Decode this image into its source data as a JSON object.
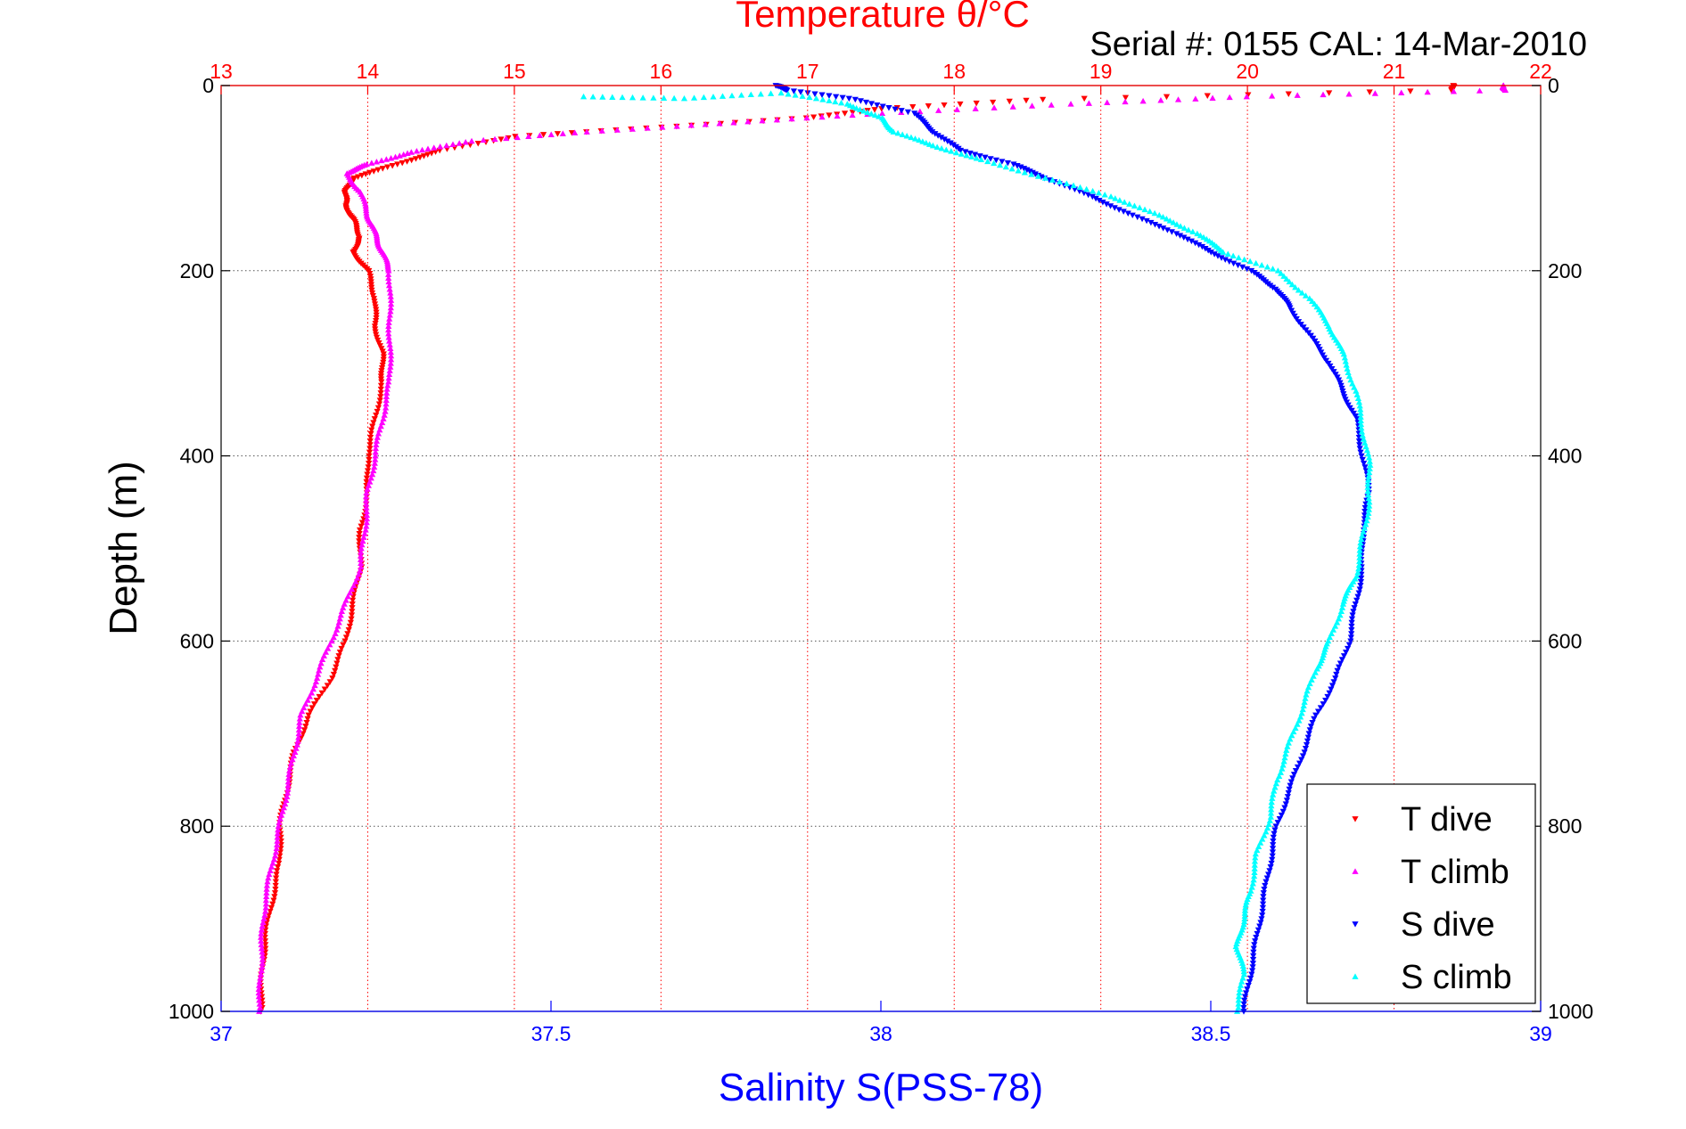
{
  "chart_data": {
    "type": "scatter",
    "title": "Temperature θ/°C",
    "subtitle": "Serial #: 0155  CAL: 14-Mar-2010",
    "ylabel": "Depth (m)",
    "xlabel_bottom": "Salinity S(PSS-78)",
    "xlabel_top": "Temperature θ/°C",
    "y_reversed": true,
    "ylim": [
      0,
      1000
    ],
    "ytick_labels": [
      "0",
      "200",
      "400",
      "600",
      "800",
      "1000"
    ],
    "ytick_values": [
      0,
      200,
      400,
      600,
      800,
      1000
    ],
    "bottom_axis": {
      "lim": [
        37,
        39
      ],
      "tick_values": [
        37,
        37.5,
        38,
        38.5,
        39
      ],
      "tick_labels": [
        "37",
        "37.5",
        "38",
        "38.5",
        "39"
      ],
      "color": "#0000ff"
    },
    "top_axis": {
      "lim": [
        13,
        22
      ],
      "tick_values": [
        13,
        14,
        15,
        16,
        17,
        18,
        19,
        20,
        21,
        22
      ],
      "tick_labels": [
        "13",
        "14",
        "15",
        "16",
        "17",
        "18",
        "19",
        "20",
        "21",
        "22"
      ],
      "color": "#ff0000"
    },
    "grid": true,
    "legend_position": "bottom-right",
    "series": [
      {
        "name": "T dive",
        "axis": "temperature",
        "color": "#ff0000",
        "marker": "triangle-down",
        "points": [
          [
            21.4,
            0
          ],
          [
            21.4,
            5
          ],
          [
            18.6,
            15
          ],
          [
            17.5,
            25
          ],
          [
            17.0,
            35
          ],
          [
            16.0,
            45
          ],
          [
            15.0,
            55
          ],
          [
            14.5,
            70
          ],
          [
            14.2,
            85
          ],
          [
            13.9,
            100
          ],
          [
            13.85,
            115
          ],
          [
            13.85,
            130
          ],
          [
            13.9,
            145
          ],
          [
            13.95,
            165
          ],
          [
            13.9,
            180
          ],
          [
            14.0,
            200
          ],
          [
            14.05,
            230
          ],
          [
            14.05,
            260
          ],
          [
            14.1,
            290
          ],
          [
            14.1,
            320
          ],
          [
            14.05,
            360
          ],
          [
            14.0,
            400
          ],
          [
            14.0,
            440
          ],
          [
            13.95,
            480
          ],
          [
            13.95,
            520
          ],
          [
            13.9,
            560
          ],
          [
            13.85,
            600
          ],
          [
            13.75,
            640
          ],
          [
            13.6,
            680
          ],
          [
            13.5,
            720
          ],
          [
            13.45,
            760
          ],
          [
            13.4,
            800
          ],
          [
            13.4,
            840
          ],
          [
            13.35,
            880
          ],
          [
            13.3,
            920
          ],
          [
            13.28,
            960
          ],
          [
            13.27,
            1000
          ]
        ]
      },
      {
        "name": "T climb",
        "axis": "temperature",
        "color": "#ff00ff",
        "marker": "triangle-up",
        "points": [
          [
            21.75,
            0
          ],
          [
            21.75,
            5
          ],
          [
            20.0,
            12
          ],
          [
            18.8,
            20
          ],
          [
            17.5,
            30
          ],
          [
            16.5,
            40
          ],
          [
            15.5,
            50
          ],
          [
            14.7,
            60
          ],
          [
            14.3,
            72
          ],
          [
            14.0,
            85
          ],
          [
            13.85,
            95
          ],
          [
            13.95,
            115
          ],
          [
            14.0,
            140
          ],
          [
            14.05,
            160
          ],
          [
            14.1,
            180
          ],
          [
            14.15,
            200
          ],
          [
            14.15,
            240
          ],
          [
            14.15,
            280
          ],
          [
            14.15,
            320
          ],
          [
            14.1,
            360
          ],
          [
            14.05,
            400
          ],
          [
            14.0,
            440
          ],
          [
            13.98,
            480
          ],
          [
            13.95,
            520
          ],
          [
            13.85,
            560
          ],
          [
            13.75,
            600
          ],
          [
            13.65,
            640
          ],
          [
            13.55,
            680
          ],
          [
            13.5,
            720
          ],
          [
            13.45,
            760
          ],
          [
            13.4,
            800
          ],
          [
            13.35,
            840
          ],
          [
            13.3,
            880
          ],
          [
            13.28,
            920
          ],
          [
            13.27,
            960
          ],
          [
            13.26,
            1000
          ]
        ]
      },
      {
        "name": "S dive",
        "axis": "salinity",
        "color": "#0000ff",
        "marker": "triangle-down",
        "points": [
          [
            37.84,
            0
          ],
          [
            37.86,
            5
          ],
          [
            37.96,
            15
          ],
          [
            38.05,
            30
          ],
          [
            38.08,
            50
          ],
          [
            38.12,
            70
          ],
          [
            38.2,
            85
          ],
          [
            38.25,
            100
          ],
          [
            38.32,
            120
          ],
          [
            38.38,
            140
          ],
          [
            38.45,
            160
          ],
          [
            38.5,
            180
          ],
          [
            38.56,
            200
          ],
          [
            38.6,
            220
          ],
          [
            38.62,
            240
          ],
          [
            38.65,
            270
          ],
          [
            38.68,
            300
          ],
          [
            38.7,
            330
          ],
          [
            38.72,
            360
          ],
          [
            38.73,
            400
          ],
          [
            38.74,
            440
          ],
          [
            38.73,
            480
          ],
          [
            38.73,
            520
          ],
          [
            38.72,
            560
          ],
          [
            38.71,
            600
          ],
          [
            38.69,
            640
          ],
          [
            38.66,
            680
          ],
          [
            38.64,
            720
          ],
          [
            38.62,
            760
          ],
          [
            38.6,
            800
          ],
          [
            38.59,
            840
          ],
          [
            38.58,
            880
          ],
          [
            38.57,
            920
          ],
          [
            38.56,
            960
          ],
          [
            38.55,
            1000
          ]
        ]
      },
      {
        "name": "S climb",
        "axis": "salinity",
        "color": "#00ffff",
        "marker": "triangle-up",
        "points": [
          [
            37.55,
            12
          ],
          [
            37.7,
            14
          ],
          [
            37.85,
            8
          ],
          [
            37.95,
            20
          ],
          [
            38.0,
            35
          ],
          [
            38.02,
            50
          ],
          [
            38.08,
            65
          ],
          [
            38.15,
            80
          ],
          [
            38.25,
            100
          ],
          [
            38.35,
            120
          ],
          [
            38.42,
            140
          ],
          [
            38.48,
            160
          ],
          [
            38.52,
            180
          ],
          [
            38.6,
            200
          ],
          [
            38.65,
            230
          ],
          [
            38.68,
            260
          ],
          [
            38.7,
            290
          ],
          [
            38.72,
            330
          ],
          [
            38.73,
            370
          ],
          [
            38.74,
            410
          ],
          [
            38.74,
            450
          ],
          [
            38.73,
            490
          ],
          [
            38.72,
            530
          ],
          [
            38.7,
            560
          ],
          [
            38.68,
            600
          ],
          [
            38.66,
            630
          ],
          [
            38.64,
            670
          ],
          [
            38.62,
            710
          ],
          [
            38.6,
            750
          ],
          [
            38.59,
            790
          ],
          [
            38.57,
            830
          ],
          [
            38.56,
            870
          ],
          [
            38.55,
            900
          ],
          [
            38.54,
            930
          ],
          [
            38.55,
            960
          ],
          [
            38.54,
            1000
          ]
        ]
      }
    ]
  }
}
